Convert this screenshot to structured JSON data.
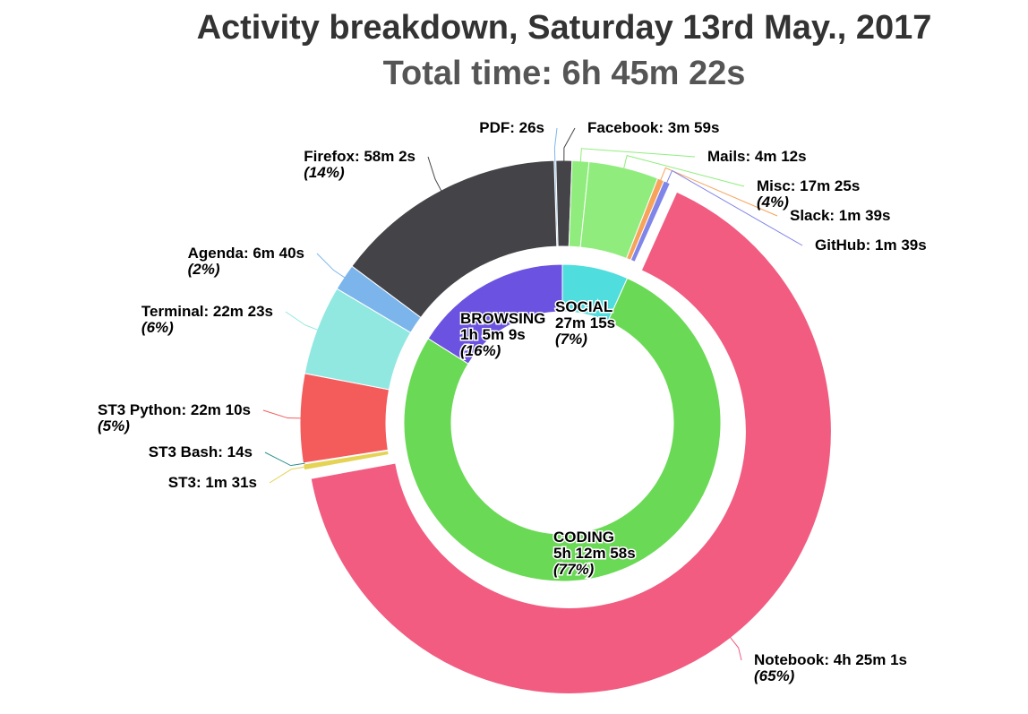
{
  "title": "Activity breakdown, Saturday 13rd May., 2017",
  "subtitle": "Total time: 6h 45m 22s",
  "chart_data": {
    "type": "pie",
    "title": "Activity breakdown, Saturday 13rd May., 2017",
    "subtitle": "Total time: 6h 45m 22s",
    "inner_ring": [
      {
        "name": "SOCIAL",
        "time": "27m 15s",
        "seconds": 1635,
        "percent": "(7%)",
        "color": "#4fdddd"
      },
      {
        "name": "CODING",
        "time": "5h 12m 58s",
        "seconds": 18778,
        "percent": "(77%)",
        "color": "#6ad955"
      },
      {
        "name": "BROWSING",
        "time": "1h 5m 9s",
        "seconds": 3909,
        "percent": "(16%)",
        "color": "#6b52e0"
      }
    ],
    "outer_ring": [
      {
        "name": "PDF",
        "time": "26s",
        "seconds": 26,
        "percent": "",
        "color": "#7cb5ec"
      },
      {
        "name": "Facebook",
        "time": "3m 59s",
        "seconds": 239,
        "percent": "",
        "color": "#434348"
      },
      {
        "name": "Mails",
        "time": "4m 12s",
        "seconds": 252,
        "percent": "",
        "color": "#90ed7d"
      },
      {
        "name": "Misc",
        "time": "17m 25s",
        "seconds": 1045,
        "percent": "(4%)",
        "color": "#90ed7d"
      },
      {
        "name": "Slack",
        "time": "1m 39s",
        "seconds": 99,
        "percent": "",
        "color": "#f7a35c"
      },
      {
        "name": "GitHub",
        "time": "1m 39s",
        "seconds": 99,
        "percent": "",
        "color": "#8085e9"
      },
      {
        "name": "Notebook",
        "time": "4h 25m 1s",
        "seconds": 15901,
        "percent": "(65%)",
        "color": "#f15c80"
      },
      {
        "name": "ST3",
        "time": "1m 31s",
        "seconds": 91,
        "percent": "",
        "color": "#e4d354"
      },
      {
        "name": "ST3 Bash",
        "time": "14s",
        "seconds": 14,
        "percent": "",
        "color": "#2b908f"
      },
      {
        "name": "ST3 Python",
        "time": "22m 10s",
        "seconds": 1330,
        "percent": "(5%)",
        "color": "#f45b5b"
      },
      {
        "name": "Terminal",
        "time": "22m 23s",
        "seconds": 1343,
        "percent": "(6%)",
        "color": "#91e8e1"
      },
      {
        "name": "Agenda",
        "time": "6m 40s",
        "seconds": 400,
        "percent": "(2%)",
        "color": "#7cb5ec"
      },
      {
        "name": "Firefox",
        "time": "58m 2s",
        "seconds": 3482,
        "percent": "(14%)",
        "color": "#434348"
      }
    ]
  }
}
